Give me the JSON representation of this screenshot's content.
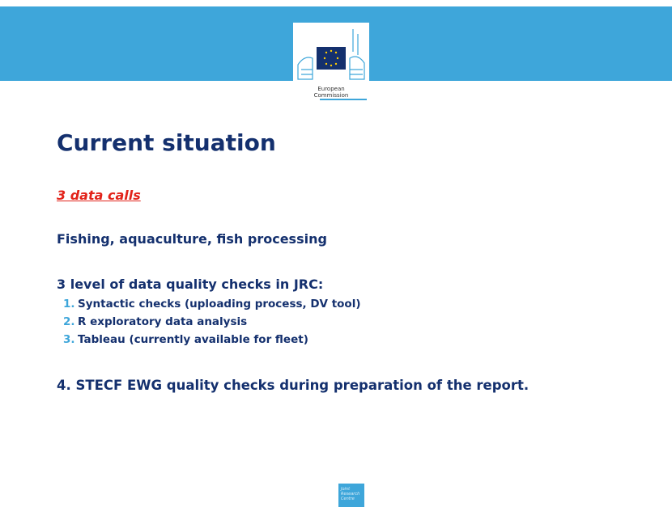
{
  "header": {
    "logo_lines": [
      "European",
      "Commission"
    ]
  },
  "title": "Current situation",
  "highlight": "3 data calls",
  "domains": "Fishing, aquaculture, fish processing",
  "checks_heading": "3 level of data quality checks in JRC:",
  "checks": [
    {
      "number": "1.",
      "text": "Syntactic checks (uploading process, DV tool)"
    },
    {
      "number": "2.",
      "text": "R exploratory data analysis"
    },
    {
      "number": "3.",
      "text": "Tableau (currently available for fleet)"
    }
  ],
  "final_point": "4. STECF EWG quality checks during preparation of the report.",
  "footer": {
    "logo_lines": [
      "Joint",
      "Research",
      "Centre"
    ]
  }
}
